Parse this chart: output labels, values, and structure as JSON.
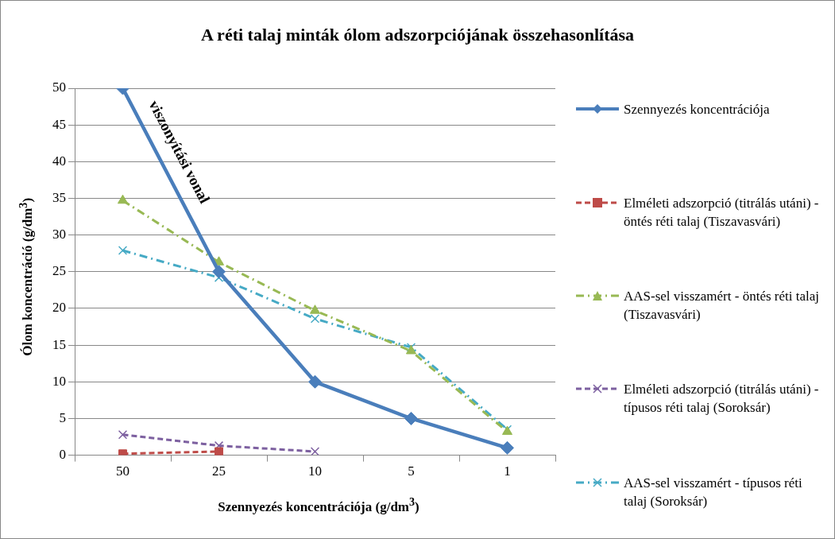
{
  "chart_data": {
    "type": "line",
    "title": "A réti talaj minták ólom adszorpciójának összehasonlítása",
    "xlabel": "Szennyezés koncentrációja (g/dm$^{3}$)",
    "ylabel": "Ólom koncentráció (g/dm$^{3}$)",
    "categories": [
      "50",
      "25",
      "10",
      "5",
      "1"
    ],
    "series": [
      {
        "name": "Szennyezés koncentrációja",
        "color": "#4a7ebb",
        "values": [
          50,
          25,
          10,
          5,
          1
        ],
        "marker": "diamond",
        "line_style": "solid"
      },
      {
        "name": "Elméleti adszorpció (titrálás utáni) - öntés réti talaj (Tiszavasvári)",
        "color": "#be4b48",
        "values": [
          0.2,
          0.5,
          null,
          null,
          null
        ],
        "marker": "square",
        "line_style": "dashed"
      },
      {
        "name": "AAS-sel visszamért - öntés réti talaj (Tiszavasvári)",
        "color": "#98b954",
        "values": [
          34.7,
          26.3,
          19.7,
          14.2,
          3.2
        ],
        "marker": "triangle",
        "line_style": "dashdot"
      },
      {
        "name": "Elméleti adszorpció (titrálás utáni) - típusos réti talaj (Soroksár)",
        "color": "#7d60a0",
        "values": [
          2.8,
          1.3,
          0.5,
          null,
          null
        ],
        "marker": "cross",
        "line_style": "dashed"
      },
      {
        "name": "AAS-sel visszamért - típusos réti talaj (Soroksár)",
        "color": "#46aac5",
        "values": [
          27.9,
          24.2,
          18.6,
          14.7,
          3.5
        ],
        "marker": "cross",
        "line_style": "dashdot"
      }
    ],
    "ylim": [
      0,
      50
    ],
    "yticks": [
      0,
      5,
      10,
      15,
      20,
      25,
      30,
      35,
      40,
      45,
      50
    ],
    "grid": "y",
    "legend": "right",
    "annotations": [
      "viszonyítási vonal"
    ]
  }
}
